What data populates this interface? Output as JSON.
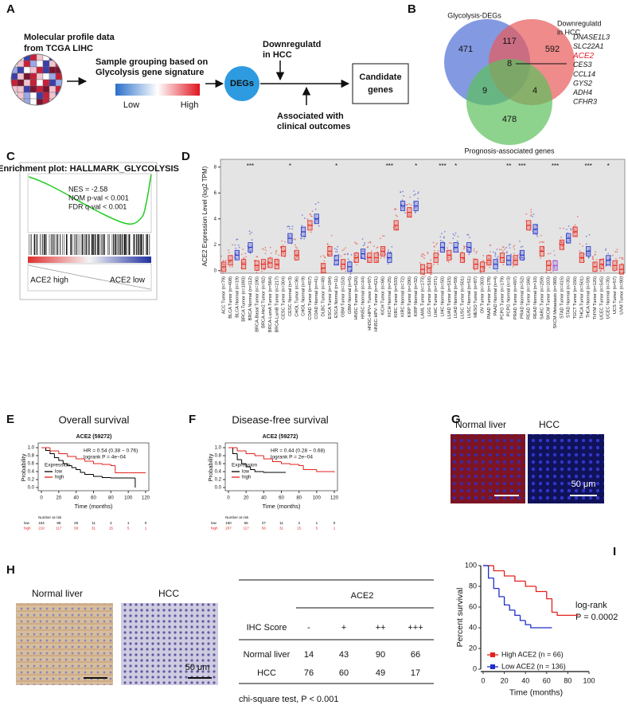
{
  "panel_labels": [
    "A",
    "B",
    "C",
    "D",
    "E",
    "F",
    "G",
    "H",
    "I"
  ],
  "diagram_a": {
    "source": [
      "Molecular profile data",
      "from TCGA LIHC"
    ],
    "grouping": [
      "Sample grouping based on",
      "Glycolysis gene signature"
    ],
    "low": "Low",
    "high": "High",
    "node": "DEGs",
    "filter_1": [
      "Downregulatd",
      "in HCC"
    ],
    "filter_2": [
      "Associated with",
      "clinical outcomes"
    ],
    "result": [
      "Candidate",
      "genes"
    ]
  },
  "venn_b": {
    "set_1": "Glycolysis-DEGs",
    "set_2": [
      "Downregulatd",
      "in HCC"
    ],
    "set_3": "Prognosis-associated genes",
    "counts": [
      471,
      117,
      592,
      8,
      9,
      4,
      478
    ],
    "genes": [
      "DNASE1L3",
      "SLC22A1",
      "ACE2",
      "CES3",
      "CCL14",
      "GYS2",
      "ADH4",
      "CFHR3"
    ]
  },
  "gsea_c": {
    "title": "Enrichment plot: HALLMARK_GLYCOLYSIS",
    "stats": [
      "NES = -2.58",
      "NOM p-val < 0.001",
      "FDR q-val < 0.001"
    ],
    "left": "ACE2 high",
    "right": "ACE2 low"
  },
  "images_g": {
    "labels": [
      "Normal liver",
      "HCC"
    ],
    "scale": "50 μm"
  },
  "images_h": {
    "labels": [
      "Normal liver",
      "HCC"
    ],
    "scale": "50 μm"
  },
  "table_h": {
    "header": "ACE2",
    "columns": [
      "IHC Score",
      "-",
      "+",
      "++",
      "+++"
    ],
    "rows": [
      [
        "Normal liver",
        14,
        43,
        90,
        66
      ],
      [
        "HCC",
        76,
        60,
        49,
        17
      ]
    ],
    "footnote": "chi-square test, P < 0.001"
  },
  "chart_data": [
    {
      "type": "box",
      "ylabel": "ACE2 Expression Level (log2 TPM)",
      "categories": [
        "ACC Tumor (n=79)",
        "BLCA Tumor (n=408)",
        "BLCA Normal (n=19)",
        "BRCA Tumor (n=1093)",
        "BRCA Normal (n=112)",
        "BRCA-Basal Tumor (n=190)",
        "BRCA-Her2 Tumor (n=82)",
        "BRCA-LumA Tumor (n=564)",
        "BRCA-LumB Tumor (n=217)",
        "CESC Tumor (n=304)",
        "CESC Normal (n=3)",
        "CHOL Tumor (n=36)",
        "CHOL Normal (n=9)",
        "COAD Tumor (n=457)",
        "COAD Normal (n=41)",
        "DLBC Tumor (n=48)",
        "ESCA Tumor (n=184)",
        "ESCA Normal (n=11)",
        "GBM Tumor (n=153)",
        "GBM Normal (n=5)",
        "HNSC Tumor (n=520)",
        "HNSC Normal (n=44)",
        "HNSC-HPV+ Tumor (n=97)",
        "HNSC-HPV- Tumor (n=421)",
        "KICH Tumor (n=66)",
        "KICH Normal (n=25)",
        "KIRC Tumor (n=533)",
        "KIRC Normal (n=72)",
        "KIRP Tumor (n=290)",
        "KIRP Normal (n=32)",
        "LAML Tumor (n=173)",
        "LGG Tumor (n=516)",
        "LIHC Tumor (n=371)",
        "LIHC Normal (n=50)",
        "LUAD Tumor (n=515)",
        "LUAD Normal (n=59)",
        "LUSC Tumor (n=501)",
        "LUSC Normal (n=51)",
        "MESO Tumor (n=87)",
        "OV Tumor (n=303)",
        "PAAD Tumor (n=178)",
        "PAAD Normal (n=4)",
        "PCPG Tumor (n=179)",
        "PCPG Normal (n=3)",
        "PRAD Tumor (n=497)",
        "PRAD Normal (n=52)",
        "READ Tumor (n=166)",
        "READ Normal (n=10)",
        "SARC Tumor (n=259)",
        "SKCM Tumor (n=103)",
        "SKCM Metastasis (n=368)",
        "STAD Tumor (n=415)",
        "STAD Normal (n=35)",
        "TGCT Tumor (n=150)",
        "THCA Tumor (n=501)",
        "THCA Normal (n=59)",
        "THYM Tumor (n=120)",
        "UCEC Tumor (n=545)",
        "UCEC Normal (n=35)",
        "UCS Tumor (n=57)",
        "UVM Tumor (n=80)"
      ],
      "values": [
        0.3,
        0.8,
        1.2,
        0.5,
        1.8,
        0.4,
        0.5,
        0.6,
        0.5,
        1.5,
        2.5,
        1.2,
        3.0,
        3.5,
        4.0,
        0.2,
        1.5,
        0.8,
        0.5,
        0.3,
        1.0,
        1.3,
        1.0,
        1.0,
        1.5,
        1.0,
        3.5,
        5.0,
        4.5,
        5.0,
        0.1,
        0.2,
        1.0,
        1.8,
        1.2,
        1.8,
        1.0,
        1.8,
        0.5,
        0.3,
        0.8,
        0.5,
        1.0,
        0.8,
        0.8,
        1.2,
        3.5,
        3.2,
        1.5,
        0.4,
        0.4,
        2.0,
        2.5,
        3.0,
        1.0,
        1.5,
        0.3,
        0.5,
        0.8,
        0.4,
        0.1
      ],
      "colors": [
        "#e8261c",
        "#e8261c",
        "#2233cc",
        "#e8261c",
        "#2233cc",
        "#e8261c",
        "#e8261c",
        "#e8261c",
        "#e8261c",
        "#e8261c",
        "#2233cc",
        "#e8261c",
        "#2233cc",
        "#e8261c",
        "#2233cc",
        "#e8261c",
        "#e8261c",
        "#2233cc",
        "#e8261c",
        "#2233cc",
        "#e8261c",
        "#2233cc",
        "#e8261c",
        "#e8261c",
        "#e8261c",
        "#2233cc",
        "#e8261c",
        "#2233cc",
        "#e8261c",
        "#2233cc",
        "#e8261c",
        "#e8261c",
        "#e8261c",
        "#2233cc",
        "#e8261c",
        "#2233cc",
        "#e8261c",
        "#2233cc",
        "#e8261c",
        "#e8261c",
        "#e8261c",
        "#2233cc",
        "#e8261c",
        "#2233cc",
        "#e8261c",
        "#2233cc",
        "#e8261c",
        "#2233cc",
        "#e8261c",
        "#e8261c",
        "#9a4fd6",
        "#e8261c",
        "#2233cc",
        "#e8261c",
        "#e8261c",
        "#2233cc",
        "#e8261c",
        "#e8261c",
        "#2233cc",
        "#e8261c",
        "#e8261c"
      ],
      "significance": [
        null,
        null,
        null,
        null,
        "***",
        null,
        null,
        null,
        null,
        null,
        "*",
        null,
        null,
        null,
        null,
        null,
        null,
        "*",
        null,
        null,
        null,
        null,
        null,
        null,
        null,
        "***",
        null,
        null,
        null,
        "*",
        null,
        null,
        null,
        "***",
        null,
        "*",
        null,
        null,
        null,
        null,
        null,
        null,
        null,
        "**",
        null,
        "***",
        null,
        null,
        null,
        null,
        "***",
        null,
        null,
        null,
        null,
        "***",
        null,
        null,
        "*",
        null,
        null
      ],
      "ylim": [
        -0.2,
        8.6
      ],
      "yticks": [
        0,
        2,
        4,
        6,
        8
      ]
    },
    {
      "type": "line",
      "title": "Overall survival",
      "subtitle": "ACE2 (59272)",
      "annotations": [
        "HR = 0.54 (0.38 − 0.76)",
        "logrank P = 4e−04"
      ],
      "xlabel": "Time (months)",
      "ylabel": "Probability",
      "legend_title": "Expression",
      "frame": true,
      "xlim": [
        0,
        120
      ],
      "xticks": [
        0,
        20,
        40,
        60,
        80,
        100,
        120
      ],
      "ylim": [
        0,
        1
      ],
      "yticks": [
        {
          "value": 0,
          "label": "0.0"
        },
        0.2,
        0.4,
        0.6,
        0.8,
        {
          "value": 1,
          "label": "1.0"
        }
      ],
      "series": [
        {
          "name": "low",
          "color": "#000000",
          "x": [
            0,
            5,
            10,
            15,
            20,
            25,
            30,
            35,
            40,
            45,
            50,
            60,
            70,
            80,
            108,
            108
          ],
          "values": [
            1,
            0.93,
            0.85,
            0.75,
            0.68,
            0.6,
            0.55,
            0.5,
            0.45,
            0.38,
            0.33,
            0.28,
            0.25,
            0.24,
            0.24,
            0
          ]
        },
        {
          "name": "high",
          "color": "#e3211c",
          "x": [
            0,
            10,
            20,
            30,
            40,
            50,
            60,
            70,
            80,
            85,
            100,
            120
          ],
          "values": [
            1,
            0.92,
            0.85,
            0.78,
            0.72,
            0.66,
            0.6,
            0.58,
            0.55,
            0.37,
            0.37,
            0.37
          ]
        }
      ],
      "risk_table": {
        "title": "Number at risk",
        "rows": [
          {
            "name": "low",
            "values": [
              154,
              85,
              26,
              11,
              4,
              1,
              0
            ]
          },
          {
            "name": "high",
            "values": [
              210,
              117,
              58,
              31,
              15,
              5,
              1
            ]
          }
        ]
      }
    },
    {
      "type": "line",
      "title": "Disease-free survival",
      "subtitle": "ACE2 (59272)",
      "annotations": [
        "HR = 0.44 (0.28 − 0.68)",
        "logrank P = 2e−04"
      ],
      "xlabel": "Time (months)",
      "ylabel": "Probability",
      "legend_title": "Expression",
      "frame": true,
      "xlim": [
        0,
        120
      ],
      "xticks": [
        0,
        20,
        40,
        60,
        80,
        100,
        120
      ],
      "ylim": [
        0,
        1
      ],
      "yticks": [
        {
          "value": 0,
          "label": "0.0"
        },
        0.2,
        0.4,
        0.6,
        0.8,
        {
          "value": 1,
          "label": "1.0"
        }
      ],
      "series": [
        {
          "name": "low",
          "color": "#000000",
          "x": [
            0,
            5,
            10,
            15,
            20,
            25,
            30,
            40,
            65
          ],
          "values": [
            1,
            0.85,
            0.7,
            0.6,
            0.52,
            0.45,
            0.4,
            0.38,
            0.38
          ]
        },
        {
          "name": "high",
          "color": "#e3211c",
          "x": [
            0,
            10,
            20,
            30,
            40,
            50,
            60,
            70,
            80,
            85,
            100,
            120
          ],
          "values": [
            1,
            0.92,
            0.85,
            0.8,
            0.72,
            0.65,
            0.6,
            0.58,
            0.55,
            0.45,
            0.4,
            0.38
          ]
        }
      ],
      "risk_table": {
        "title": "Number at risk",
        "rows": [
          {
            "name": "low",
            "values": [
              150,
              65,
              27,
              11,
              4,
              1,
              0
            ]
          },
          {
            "name": "high",
            "values": [
              207,
              117,
              56,
              31,
              15,
              5,
              1
            ]
          }
        ]
      }
    },
    {
      "type": "line",
      "annotations": [
        "log-rank",
        "P = 0.0002"
      ],
      "xlabel": "Time (months)",
      "ylabel": "Percent survival",
      "frame": false,
      "xlim": [
        0,
        100
      ],
      "xticks": [
        0,
        20,
        40,
        60,
        80,
        100
      ],
      "ylim": [
        0,
        100
      ],
      "yticks": [
        0,
        20,
        40,
        60,
        80,
        100
      ],
      "series": [
        {
          "name": "High ACE2 (n = 66)",
          "color": "#e3211c",
          "x": [
            0,
            10,
            20,
            30,
            40,
            50,
            60,
            65,
            70,
            90
          ],
          "values": [
            100,
            95,
            90,
            85,
            80,
            75,
            68,
            55,
            52,
            52
          ]
        },
        {
          "name": "Low ACE2 (n = 136)",
          "color": "#1f2fc8",
          "x": [
            0,
            5,
            10,
            15,
            20,
            25,
            30,
            35,
            40,
            45,
            65
          ],
          "values": [
            100,
            88,
            78,
            70,
            62,
            57,
            52,
            47,
            43,
            40,
            40
          ]
        }
      ]
    }
  ]
}
